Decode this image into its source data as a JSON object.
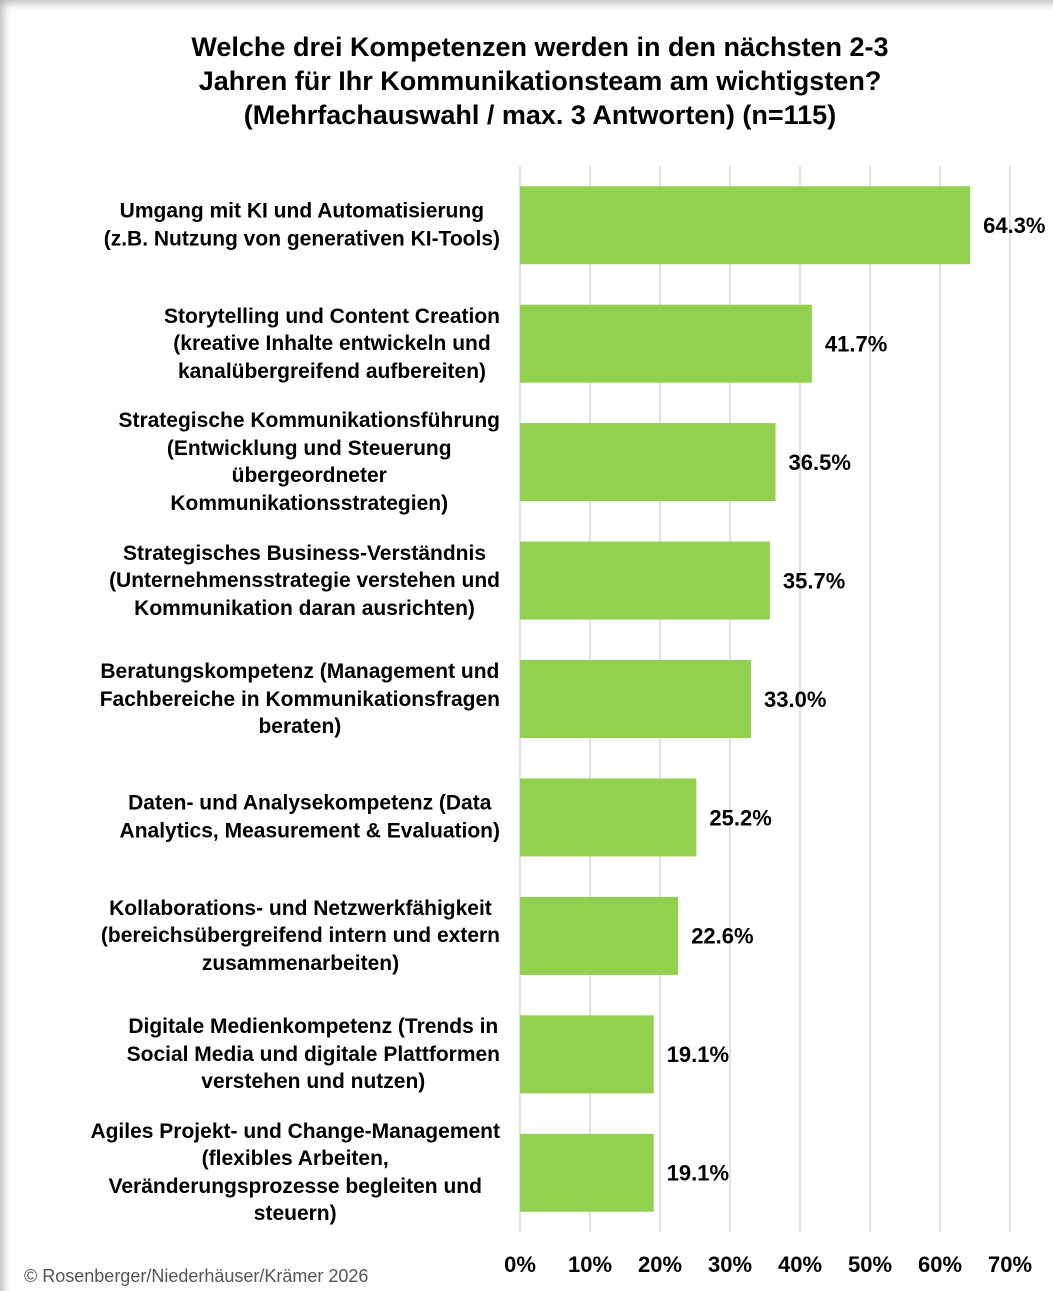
{
  "chart_data": {
    "type": "bar",
    "orientation": "horizontal",
    "title": "Welche drei Kompetenzen werden in den nächsten 2-3\nJahren für Ihr Kommunikationsteam am wichtigsten?\n(Mehrfachauswahl / max. 3 Antworten) (n=115)",
    "categories": [
      "Umgang mit KI und Automatisierung\n(z.B. Nutzung von generativen KI-Tools)",
      "Storytelling und Content Creation\n(kreative Inhalte entwickeln und\nkanalübergreifend aufbereiten)",
      "Strategische Kommunikationsführung\n(Entwicklung und Steuerung\nübergeordneter\nKommunikationsstrategien)",
      "Strategisches Business-Verständnis\n(Unternehmensstrategie verstehen und\nKommunikation daran ausrichten)",
      "Beratungskompetenz (Management und\nFachbereiche in Kommunikationsfragen\nberaten)",
      "Daten- und Analysekompetenz (Data\nAnalytics, Measurement & Evaluation)",
      "Kollaborations- und Netzwerkfähigkeit\n(bereichsübergreifend intern und extern\nzusammenarbeiten)",
      "Digitale Medienkompetenz (Trends in\nSocial Media und digitale Plattformen\nverstehen und nutzen)",
      "Agiles Projekt- und Change-Management\n(flexibles Arbeiten,\nVeränderungsprozesse begleiten und\nsteuern)"
    ],
    "values": [
      64.3,
      41.7,
      36.5,
      35.7,
      33.0,
      25.2,
      22.6,
      19.1,
      19.1
    ],
    "value_labels": [
      "64.3%",
      "41.7%",
      "36.5%",
      "35.7%",
      "33.0%",
      "25.2%",
      "22.6%",
      "19.1%",
      "19.1%"
    ],
    "color": "#92d050",
    "xlim": [
      0,
      70
    ],
    "xticks": [
      {
        "value": 0,
        "label": "0%"
      },
      {
        "value": 10,
        "label": "10%"
      },
      {
        "value": 20,
        "label": "20%"
      },
      {
        "value": 30,
        "label": "30%"
      },
      {
        "value": 40,
        "label": "40%"
      },
      {
        "value": 50,
        "label": "50%"
      },
      {
        "value": 60,
        "label": "60%"
      },
      {
        "value": 70,
        "label": "70%"
      }
    ],
    "grid": true,
    "source": "© Rosenberger/Niederhäuser/Krämer 2026"
  }
}
